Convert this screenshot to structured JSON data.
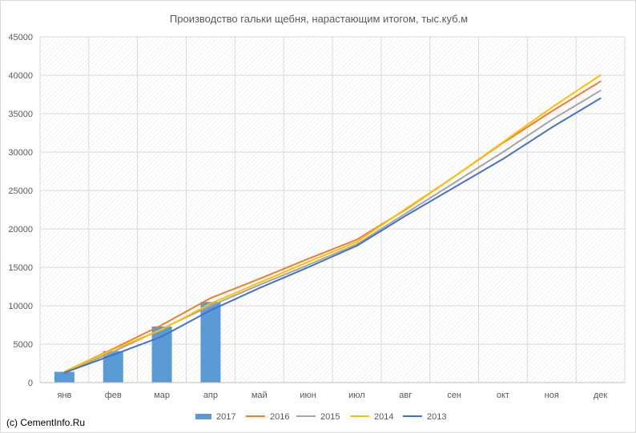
{
  "chart_data": {
    "type": "bar+line",
    "title": "Производство гальки щебня, нарастающим итогом, тыс.куб.м",
    "categories": [
      "янв",
      "фев",
      "мар",
      "апр",
      "май",
      "июн",
      "июл",
      "авг",
      "сен",
      "окт",
      "ноя",
      "дек"
    ],
    "ylim": [
      0,
      45000
    ],
    "yticks": [
      0,
      5000,
      10000,
      15000,
      20000,
      25000,
      30000,
      35000,
      40000,
      45000
    ],
    "grid": true,
    "legend_position": "bottom",
    "bar_series": {
      "name": "2017",
      "color": "#5b9bd5",
      "values": [
        1400,
        4100,
        7300,
        10500,
        null,
        null,
        null,
        null,
        null,
        null,
        null,
        null
      ]
    },
    "line_series": [
      {
        "name": "2016",
        "color": "#ed7d31",
        "values": [
          1400,
          4400,
          7500,
          11000,
          13500,
          16100,
          18600,
          22500,
          26800,
          31200,
          35300,
          39200
        ]
      },
      {
        "name": "2015",
        "color": "#a5a5a5",
        "values": [
          1300,
          4000,
          7000,
          10000,
          12700,
          15300,
          18000,
          22000,
          26000,
          30000,
          34200,
          38000
        ]
      },
      {
        "name": "2014",
        "color": "#ffc000",
        "values": [
          1400,
          4300,
          6900,
          10300,
          13000,
          15700,
          18300,
          22600,
          26800,
          31300,
          35800,
          40000
        ]
      },
      {
        "name": "2013",
        "color": "#4472c4",
        "values": [
          1300,
          3600,
          6000,
          9400,
          12300,
          15000,
          17800,
          21700,
          25400,
          29100,
          33200,
          37000
        ]
      }
    ]
  },
  "credit": "(c) CementInfo.Ru",
  "colors": {
    "grid": "#d9d9d9",
    "hatch": "#e6e6e6",
    "axis": "#bfbfbf",
    "text": "#595959"
  }
}
